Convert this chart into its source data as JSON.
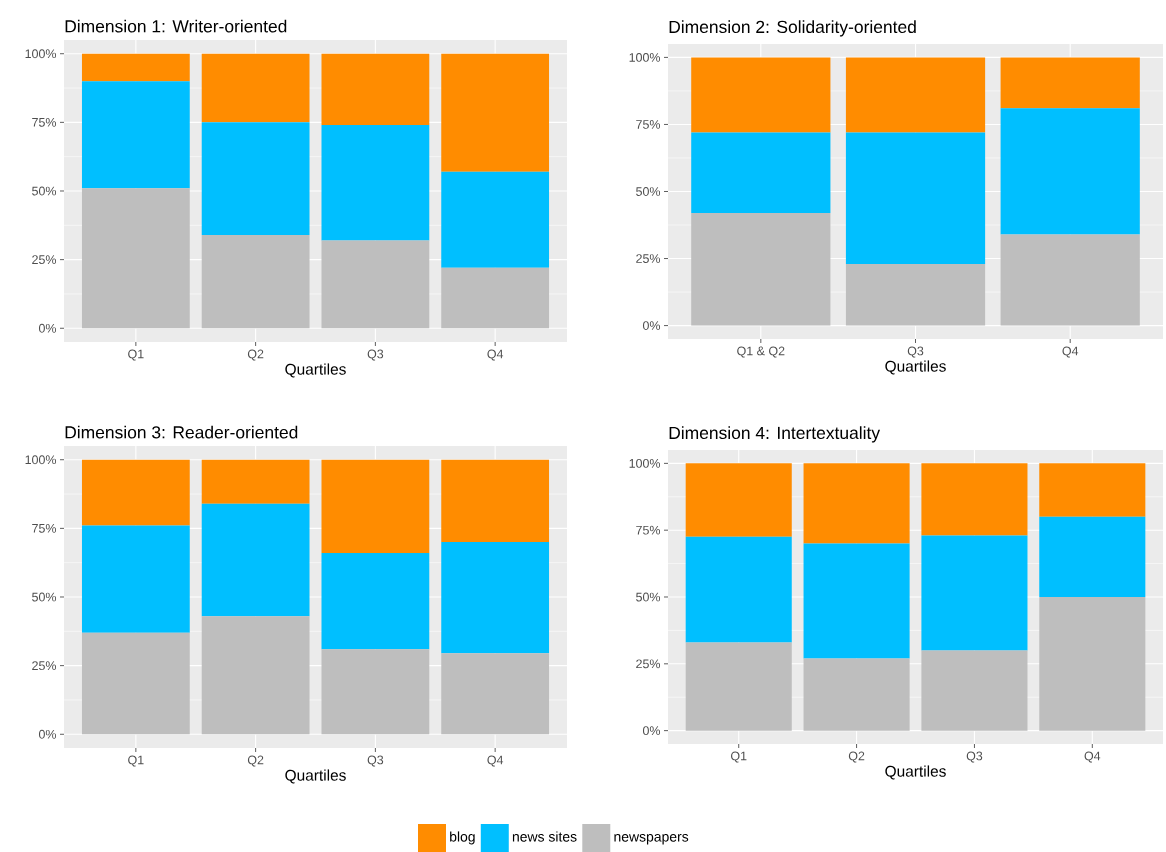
{
  "chart_data": [
    {
      "type": "bar",
      "stacked": true,
      "title": "Dimension 1: Writer-oriented",
      "xlabel": "Quartiles",
      "categories": [
        "Q1",
        "Q2",
        "Q3",
        "Q4"
      ],
      "grid": true,
      "legend": "bottom",
      "ylim": [
        -5,
        105
      ],
      "yticks": [
        {
          "value": 0,
          "label": "0%"
        },
        {
          "value": 25,
          "label": "25%"
        },
        {
          "value": 50,
          "label": "50%"
        },
        {
          "value": 75,
          "label": "75%"
        },
        {
          "value": 100,
          "label": "100%"
        }
      ],
      "series": [
        {
          "name": "newspapers",
          "color": "#bebebe",
          "values": [
            51,
            34,
            32,
            22
          ]
        },
        {
          "name": "news sites",
          "color": "#00bfff",
          "values": [
            39,
            41,
            42,
            35
          ]
        },
        {
          "name": "blog",
          "color": "#ff8c00",
          "values": [
            10,
            25,
            26,
            43
          ]
        }
      ]
    },
    {
      "type": "bar",
      "stacked": true,
      "title": "Dimension 2: Solidarity-oriented",
      "xlabel": "Quartiles",
      "categories": [
        "Q1 & Q2",
        "Q3",
        "Q4"
      ],
      "grid": true,
      "ylim": [
        -5,
        105
      ],
      "yticks": [
        {
          "value": 0,
          "label": "0%"
        },
        {
          "value": 25,
          "label": "25%"
        },
        {
          "value": 50,
          "label": "50%"
        },
        {
          "value": 75,
          "label": "75%"
        },
        {
          "value": 100,
          "label": "100%"
        }
      ],
      "series": [
        {
          "color": "#bebebe",
          "values": [
            42,
            23,
            34
          ]
        },
        {
          "color": "#00bfff",
          "values": [
            30,
            49,
            47
          ]
        },
        {
          "color": "#ff8c00",
          "values": [
            28,
            28,
            19
          ]
        }
      ]
    },
    {
      "type": "bar",
      "stacked": true,
      "title": "Dimension 3: Reader-oriented",
      "xlabel": "Quartiles",
      "categories": [
        "Q1",
        "Q2",
        "Q3",
        "Q4"
      ],
      "grid": true,
      "ylim": [
        -5,
        105
      ],
      "yticks": [
        {
          "value": 0,
          "label": "0%"
        },
        {
          "value": 25,
          "label": "25%"
        },
        {
          "value": 50,
          "label": "50%"
        },
        {
          "value": 75,
          "label": "75%"
        },
        {
          "value": 100,
          "label": "100%"
        }
      ],
      "series": [
        {
          "color": "#bebebe",
          "values": [
            37,
            43,
            31,
            29.5
          ]
        },
        {
          "color": "#00bfff",
          "values": [
            39,
            41,
            35,
            40.5
          ]
        },
        {
          "color": "#ff8c00",
          "values": [
            24,
            16,
            34,
            30
          ]
        }
      ]
    },
    {
      "type": "bar",
      "stacked": true,
      "title": "Dimension 4: Intertextuality",
      "xlabel": "Quartiles",
      "categories": [
        "Q1",
        "Q2",
        "Q3",
        "Q4"
      ],
      "grid": true,
      "ylim": [
        -5,
        105
      ],
      "yticks": [
        {
          "value": 0,
          "label": "0%"
        },
        {
          "value": 25,
          "label": "25%"
        },
        {
          "value": 50,
          "label": "50%"
        },
        {
          "value": 75,
          "label": "75%"
        },
        {
          "value": 100,
          "label": "100%"
        }
      ],
      "series": [
        {
          "color": "#bebebe",
          "values": [
            33,
            27,
            30,
            50
          ]
        },
        {
          "color": "#00bfff",
          "values": [
            39.5,
            43,
            43,
            30
          ]
        },
        {
          "color": "#ff8c00",
          "values": [
            27.5,
            30,
            27,
            20
          ]
        }
      ]
    }
  ]
}
